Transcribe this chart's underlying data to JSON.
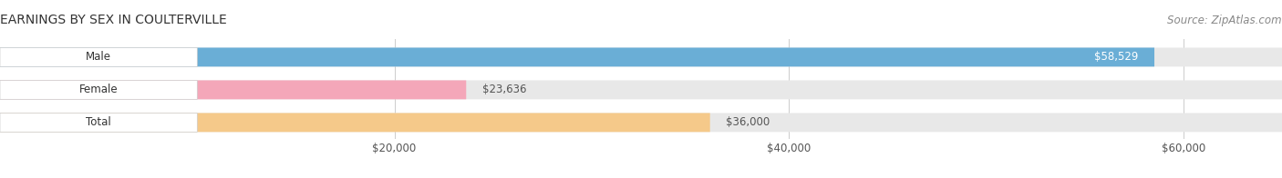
{
  "title": "EARNINGS BY SEX IN COULTERVILLE",
  "source": "Source: ZipAtlas.com",
  "categories": [
    "Male",
    "Female",
    "Total"
  ],
  "values": [
    58529,
    23636,
    36000
  ],
  "bar_colors": [
    "#6aaed6",
    "#f4a7b9",
    "#f5c98a"
  ],
  "bar_bg_color": "#e8e8e8",
  "xlim": [
    0,
    65000
  ],
  "xticks": [
    20000,
    40000,
    60000
  ],
  "xtick_labels": [
    "$20,000",
    "$40,000",
    "$60,000"
  ],
  "title_fontsize": 10,
  "source_fontsize": 8.5,
  "tick_fontsize": 8.5,
  "bar_label_fontsize": 8.5,
  "category_fontsize": 8.5,
  "bar_height": 0.58,
  "background_color": "#ffffff"
}
